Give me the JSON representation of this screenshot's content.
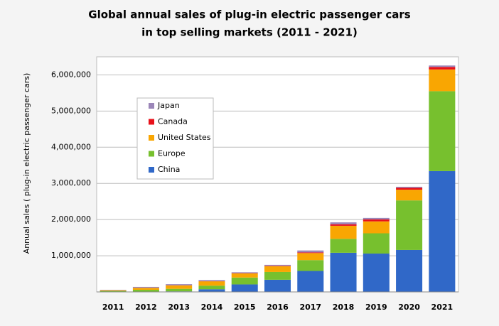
{
  "chart_data": {
    "type": "stacked-bar",
    "title": [
      "Global annual sales of plug-in electric passenger cars",
      "in top selling markets (2011 - 2021)"
    ],
    "y_label": "Annual sales ( plug-in electric passenger cars)",
    "categories": [
      "2011",
      "2012",
      "2013",
      "2014",
      "2015",
      "2016",
      "2017",
      "2018",
      "2019",
      "2020",
      "2021"
    ],
    "series": [
      {
        "name": "China",
        "color": "#3068c8",
        "values": [
          5000,
          9000,
          15000,
          73000,
          207000,
          336000,
          579000,
          1082000,
          1060000,
          1160000,
          3340000
        ]
      },
      {
        "name": "Europe",
        "color": "#77c02e",
        "values": [
          22000,
          50000,
          70000,
          100000,
          190000,
          215000,
          300000,
          385000,
          560000,
          1370000,
          2210000
        ]
      },
      {
        "name": "United States",
        "color": "#f9a602",
        "values": [
          17800,
          53000,
          97000,
          119000,
          114000,
          160000,
          195000,
          361000,
          330000,
          296000,
          600000
        ]
      },
      {
        "name": "Canada",
        "color": "#e8111a",
        "values": [
          500,
          2500,
          3000,
          5000,
          7000,
          12000,
          18000,
          43000,
          56000,
          52000,
          70000
        ]
      },
      {
        "name": "Japan",
        "color": "#9b86b8",
        "values": [
          12600,
          24000,
          29000,
          31000,
          25000,
          25000,
          54000,
          52000,
          39000,
          29000,
          40000
        ]
      }
    ],
    "ylim": [
      0,
      6500000
    ],
    "yticks": [
      {
        "value": 1000000,
        "label": "1,000,000"
      },
      {
        "value": 2000000,
        "label": "2,000,000"
      },
      {
        "value": 3000000,
        "label": "3,000,000"
      },
      {
        "value": 4000000,
        "label": "4,000,000"
      },
      {
        "value": 5000000,
        "label": "5,000,000"
      },
      {
        "value": 6000000,
        "label": "6,000,000"
      }
    ],
    "grid": true
  }
}
